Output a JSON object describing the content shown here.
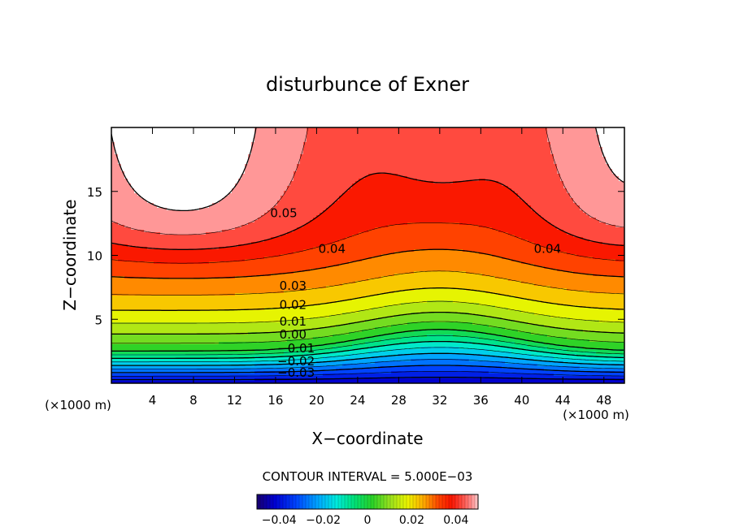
{
  "chart_data": {
    "type": "heatmap",
    "title": "disturbunce of Exner",
    "xlabel": "X−coordinate",
    "ylabel": "Z−coordinate",
    "x_unit_left": "(×1000 m)",
    "x_unit_right": "(×1000 m)",
    "xlim": [
      0,
      50
    ],
    "ylim": [
      0,
      20
    ],
    "x_ticks": [
      4,
      8,
      12,
      16,
      20,
      24,
      28,
      32,
      36,
      40,
      44,
      48
    ],
    "x_tick_labels": [
      "4",
      "8",
      "12",
      "16",
      "20",
      "24",
      "28",
      "32",
      "36",
      "40",
      "44",
      "48"
    ],
    "y_ticks": [
      5,
      10,
      15
    ],
    "y_tick_labels": [
      "5",
      "10",
      "15"
    ],
    "contour_interval_text": "CONTOUR INTERVAL = 5.000E−03",
    "contour_labels": [
      {
        "text": "0.05",
        "x": 16.8,
        "y": 13.0
      },
      {
        "text": "0.04",
        "x": 21.5,
        "y": 10.2
      },
      {
        "text": "0.04",
        "x": 42.5,
        "y": 10.2
      },
      {
        "text": "0.03",
        "x": 17.7,
        "y": 7.3
      },
      {
        "text": "0.02",
        "x": 17.7,
        "y": 5.8
      },
      {
        "text": "0.01",
        "x": 17.7,
        "y": 4.5
      },
      {
        "text": "0.00",
        "x": 17.7,
        "y": 3.5
      },
      {
        "text": "−0.01",
        "x": 18.0,
        "y": 2.4
      },
      {
        "text": "−0.02",
        "x": 18.0,
        "y": 1.4
      },
      {
        "text": "−0.03",
        "x": 18.0,
        "y": 0.5
      }
    ],
    "colorbar": {
      "range": [
        -0.05,
        0.05
      ],
      "tick_values": [
        -0.04,
        -0.02,
        0,
        0.02,
        0.04
      ],
      "tick_labels": [
        "−0.04",
        "−0.02",
        "0",
        "0.02",
        "0.04"
      ]
    },
    "field_description_values": {
      "surface_min": -0.045,
      "top_max": 0.05,
      "ridge_center_x": 32
    }
  }
}
